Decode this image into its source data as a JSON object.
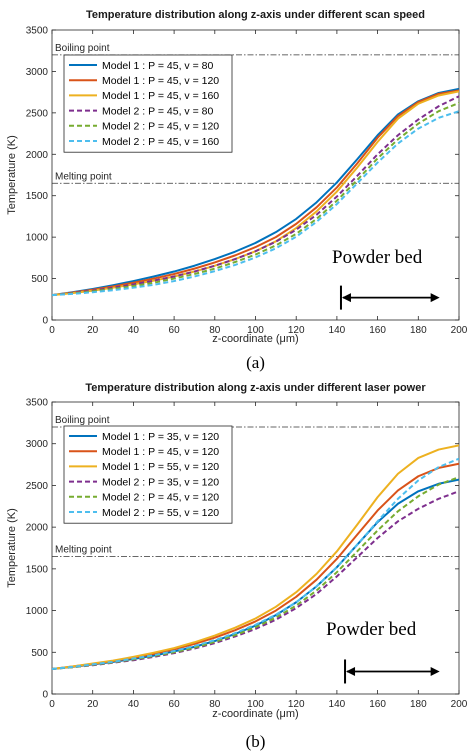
{
  "chart_data": [
    {
      "type": "line",
      "title": "Temperature distribution along z-axis under different scan speed",
      "xlabel": "z-coordinate (μm)",
      "ylabel": "Temperature (K)",
      "xlim": [
        0,
        200
      ],
      "ylim": [
        0,
        3500
      ],
      "xticks": [
        "0",
        "20",
        "40",
        "60",
        "80",
        "100",
        "120",
        "140",
        "160",
        "180",
        "200"
      ],
      "yticks": [
        "0",
        "500",
        "1000",
        "1500",
        "2000",
        "2500",
        "3000",
        "3500"
      ],
      "legend_position": "top-left",
      "caption": "(a)",
      "annotations": {
        "boiling": {
          "label": "Boiling point",
          "value": 3200
        },
        "melting": {
          "label": "Melting point",
          "value": 1650
        },
        "powder_bed": {
          "label": "Powder bed",
          "x_start": 142,
          "x_end": 190,
          "y": 270
        }
      },
      "x": [
        0,
        10,
        20,
        30,
        40,
        50,
        60,
        70,
        80,
        90,
        100,
        110,
        120,
        130,
        140,
        150,
        160,
        170,
        180,
        190,
        200
      ],
      "series": [
        {
          "name": "Model 1 : P = 45, v = 80",
          "color": "#0072bd",
          "dash": "solid",
          "values": [
            300,
            335,
            375,
            420,
            470,
            525,
            585,
            655,
            735,
            825,
            930,
            1060,
            1220,
            1420,
            1660,
            1940,
            2230,
            2480,
            2640,
            2740,
            2790
          ]
        },
        {
          "name": "Model 1 : P = 45, v = 120",
          "color": "#d95319",
          "dash": "solid",
          "values": [
            300,
            330,
            365,
            405,
            450,
            500,
            555,
            620,
            695,
            780,
            880,
            1000,
            1160,
            1360,
            1600,
            1890,
            2200,
            2460,
            2630,
            2730,
            2770
          ]
        },
        {
          "name": "Model 1 : P = 45, v = 160",
          "color": "#edb120",
          "dash": "solid",
          "values": [
            300,
            325,
            355,
            390,
            430,
            475,
            525,
            585,
            655,
            735,
            830,
            950,
            1110,
            1310,
            1550,
            1840,
            2150,
            2430,
            2610,
            2710,
            2760
          ]
        },
        {
          "name": "Model 2 : P = 45, v = 80",
          "color": "#7e2f8e",
          "dash": "dashed",
          "values": [
            300,
            325,
            355,
            390,
            430,
            475,
            525,
            585,
            655,
            735,
            830,
            945,
            1090,
            1270,
            1490,
            1740,
            2000,
            2230,
            2420,
            2580,
            2700
          ]
        },
        {
          "name": "Model 2 : P = 45, v = 120",
          "color": "#77ac30",
          "dash": "dashed",
          "values": [
            300,
            320,
            345,
            375,
            410,
            450,
            500,
            555,
            620,
            700,
            790,
            900,
            1040,
            1220,
            1440,
            1690,
            1950,
            2180,
            2370,
            2520,
            2620
          ]
        },
        {
          "name": "Model 2 : P = 45, v = 160",
          "color": "#4dbeee",
          "dash": "dashed",
          "values": [
            300,
            315,
            335,
            360,
            390,
            425,
            470,
            525,
            590,
            665,
            755,
            865,
            1005,
            1185,
            1400,
            1650,
            1900,
            2130,
            2310,
            2440,
            2520
          ]
        }
      ]
    },
    {
      "type": "line",
      "title": "Temperature distribution along z-axis under different laser power",
      "xlabel": "z-coordinate (μm)",
      "ylabel": "Temperature (K)",
      "xlim": [
        0,
        200
      ],
      "ylim": [
        0,
        3500
      ],
      "xticks": [
        "0",
        "20",
        "40",
        "60",
        "80",
        "100",
        "120",
        "140",
        "160",
        "180",
        "200"
      ],
      "yticks": [
        "0",
        "500",
        "1000",
        "1500",
        "2000",
        "2500",
        "3000",
        "3500"
      ],
      "legend_position": "top-left",
      "caption": "(b)",
      "annotations": {
        "boiling": {
          "label": "Boiling point",
          "value": 3200
        },
        "melting": {
          "label": "Melting point",
          "value": 1650
        },
        "powder_bed": {
          "label": "Powder bed",
          "x_start": 144,
          "x_end": 190,
          "y": 270
        }
      },
      "x": [
        0,
        10,
        20,
        30,
        40,
        50,
        60,
        70,
        80,
        90,
        100,
        110,
        120,
        130,
        140,
        150,
        160,
        170,
        180,
        190,
        200
      ],
      "series": [
        {
          "name": "Model 1 : P = 35, v = 120",
          "color": "#0072bd",
          "dash": "solid",
          "values": [
            300,
            325,
            355,
            385,
            420,
            460,
            510,
            565,
            635,
            720,
            820,
            945,
            1100,
            1290,
            1520,
            1790,
            2060,
            2280,
            2430,
            2520,
            2570
          ]
        },
        {
          "name": "Model 1 : P = 45, v = 120",
          "color": "#d95319",
          "dash": "solid",
          "values": [
            300,
            330,
            360,
            395,
            435,
            480,
            535,
            600,
            675,
            765,
            870,
            1000,
            1165,
            1370,
            1620,
            1910,
            2200,
            2440,
            2610,
            2710,
            2760
          ]
        },
        {
          "name": "Model 1 : P = 55, v = 120",
          "color": "#edb120",
          "dash": "solid",
          "values": [
            300,
            330,
            365,
            400,
            445,
            495,
            550,
            620,
            700,
            795,
            905,
            1045,
            1220,
            1440,
            1710,
            2030,
            2360,
            2640,
            2830,
            2930,
            2980
          ]
        },
        {
          "name": "Model 2 : P = 35, v = 120",
          "color": "#7e2f8e",
          "dash": "dashed",
          "values": [
            300,
            320,
            345,
            375,
            405,
            445,
            490,
            545,
            610,
            690,
            780,
            890,
            1030,
            1200,
            1410,
            1640,
            1870,
            2070,
            2220,
            2340,
            2430
          ]
        },
        {
          "name": "Model 2 : P = 45, v = 120",
          "color": "#77ac30",
          "dash": "dashed",
          "values": [
            300,
            320,
            350,
            380,
            415,
            455,
            500,
            555,
            625,
            705,
            800,
            915,
            1060,
            1240,
            1460,
            1710,
            1960,
            2190,
            2370,
            2510,
            2600
          ]
        },
        {
          "name": "Model 2 : P = 55, v = 120",
          "color": "#4dbeee",
          "dash": "dashed",
          "values": [
            300,
            325,
            355,
            385,
            425,
            465,
            515,
            575,
            645,
            730,
            830,
            950,
            1100,
            1290,
            1520,
            1790,
            2070,
            2340,
            2560,
            2720,
            2820
          ]
        }
      ]
    }
  ]
}
